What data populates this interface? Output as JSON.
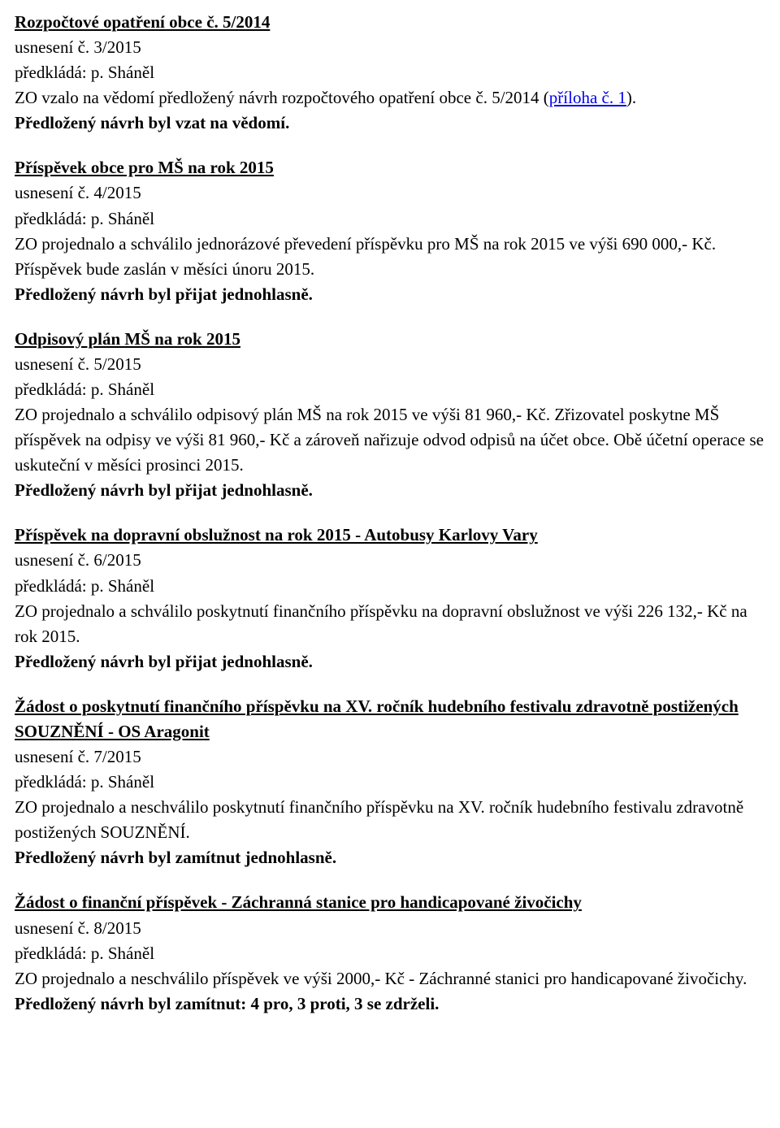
{
  "sections": [
    {
      "heading": "Rozpočtové opatření obce č. 5/2014",
      "usneseni": "usnesení č. 3/2015",
      "predklada": "předkládá: p. Sháněl",
      "body_pre": "ZO vzalo na vědomí předložený návrh rozpočtového opatření obce č. 5/2014 (",
      "link_text": "příloha č. 1",
      "body_post": ").",
      "result": "Předložený návrh byl vzat na vědomí."
    },
    {
      "heading": "Příspěvek obce pro MŠ na rok 2015",
      "usneseni": "usnesení č. 4/2015",
      "predklada": "předkládá: p. Sháněl",
      "body": "ZO projednalo a schválilo jednorázové převedení příspěvku pro MŠ na rok 2015 ve výši 690 000,- Kč. Příspěvek bude zaslán  v měsíci únoru 2015.",
      "result": "Předložený návrh byl přijat jednohlasně."
    },
    {
      "heading": "Odpisový plán MŠ na rok 2015",
      "usneseni": "usnesení č. 5/2015",
      "predklada": "předkládá: p. Sháněl",
      "body": "ZO projednalo a schválilo odpisový plán MŠ na rok 2015 ve výši 81 960,- Kč. Zřizovatel poskytne MŠ příspěvek na odpisy ve výši 81 960,- Kč a zároveň nařizuje odvod odpisů na účet obce. Obě účetní operace se uskuteční v měsíci prosinci 2015.",
      "result": "Předložený návrh byl přijat jednohlasně."
    },
    {
      "heading": "Příspěvek na dopravní obslužnost na rok 2015 - Autobusy Karlovy Vary",
      "usneseni": "usnesení č. 6/2015",
      "predklada": "předkládá: p. Sháněl",
      "body": "ZO projednalo a schválilo poskytnutí finančního příspěvku na dopravní obslužnost ve výši 226 132,- Kč na rok 2015.",
      "result": "Předložený návrh byl přijat jednohlasně."
    },
    {
      "heading": "Žádost o poskytnutí finančního příspěvku na XV. ročník hudebního festivalu zdravotně postižených SOUZNĚNÍ - OS Aragonit",
      "usneseni": "usnesení č. 7/2015",
      "predklada": "předkládá: p. Sháněl",
      "body": "ZO projednalo a neschválilo poskytnutí finančního příspěvku na XV. ročník hudebního festivalu zdravotně postižených SOUZNĚNÍ.",
      "result": "Předložený návrh byl zamítnut jednohlasně."
    },
    {
      "heading": "Žádost o finanční příspěvek - Záchranná stanice pro handicapované živočichy",
      "usneseni": "usnesení č. 8/2015",
      "predklada": "předkládá: p. Sháněl",
      "body": "ZO projednalo a neschválilo příspěvek ve výši 2000,- Kč - Záchranné stanici pro handicapované živočichy.",
      "result": "Předložený návrh byl zamítnut: 4 pro, 3 proti, 3 se zdrželi."
    }
  ]
}
